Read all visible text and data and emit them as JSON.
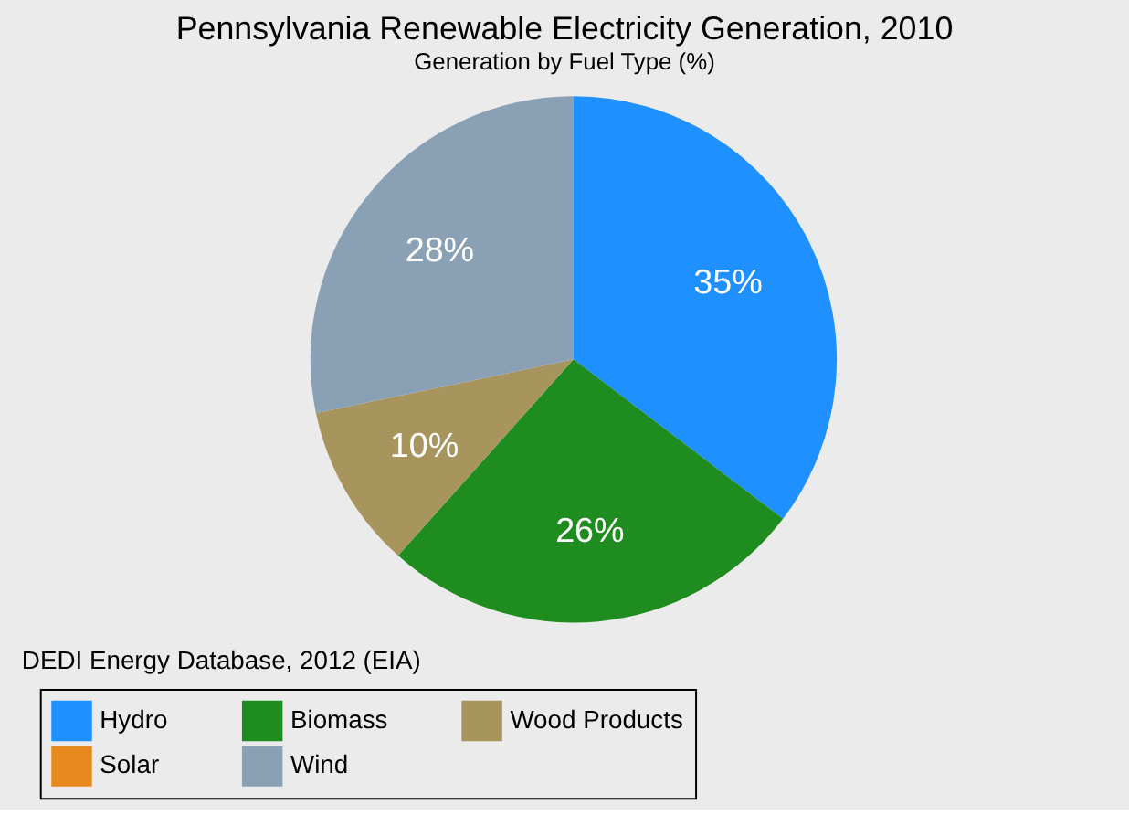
{
  "chart_data": {
    "type": "pie",
    "title": "Pennsylvania Renewable Electricity Generation, 2010",
    "subtitle": "Generation by Fuel Type (%)",
    "categories": [
      "Hydro",
      "Biomass",
      "Wood Products",
      "Solar",
      "Wind"
    ],
    "values": [
      35,
      26,
      10,
      0,
      28
    ],
    "value_labels": [
      "35%",
      "26%",
      "10%",
      null,
      "28%"
    ],
    "colors": [
      "#1e90ff",
      "#1e8c1e",
      "#a8955e",
      "#e8891e",
      "#8aa0b5"
    ],
    "legend": "bottom",
    "annotations": [
      "DEDI Energy Database, 2012  (EIA)"
    ]
  }
}
